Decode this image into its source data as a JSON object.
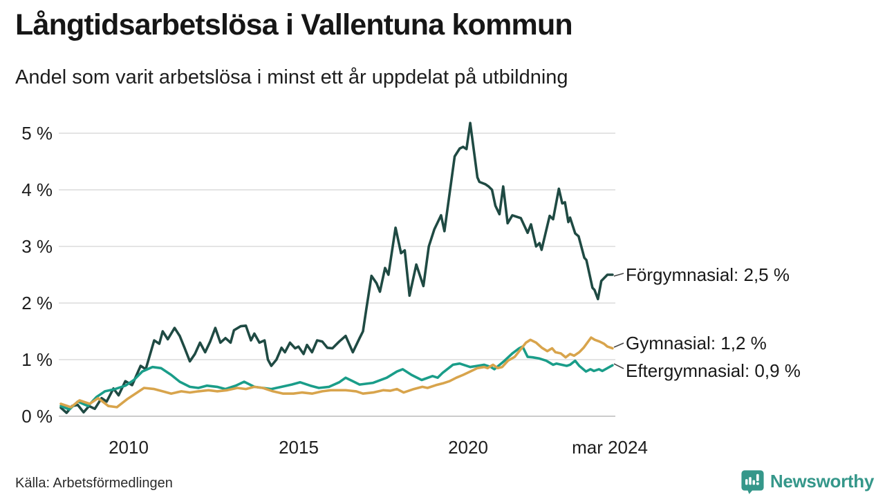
{
  "header": {
    "title": "Långtidsarbetslösa i Vallentuna kommun",
    "subtitle": "Andel som varit arbetslösa i minst ett år uppdelat på utbildning"
  },
  "footer": {
    "source": "Källa: Arbetsförmedlingen",
    "brand": "Newsworthy",
    "brand_color": "#35978a",
    "brand_icon": "newsworthy-bubble-barchart-icon"
  },
  "chart_data": {
    "type": "line",
    "title": "Långtidsarbetslösa i Vallentuna kommun",
    "subtitle": "Andel som varit arbetslösa i minst ett år uppdelat på utbildning",
    "grid": true,
    "legend_position": "right-end-labels",
    "x_axis": {
      "range": [
        2008.0,
        2024.3
      ],
      "ticks": [
        {
          "label": "2010",
          "year": 2010
        },
        {
          "label": "2015",
          "year": 2015
        },
        {
          "label": "2020",
          "year": 2020
        },
        {
          "label": "mar 2024",
          "year": 2024.17
        }
      ]
    },
    "y_axis": {
      "range": [
        0,
        5.3
      ],
      "unit": "%",
      "ticks": [
        {
          "label": "0 %",
          "value": 0
        },
        {
          "label": "1 %",
          "value": 1
        },
        {
          "label": "2 %",
          "value": 2
        },
        {
          "label": "3 %",
          "value": 3
        },
        {
          "label": "4 %",
          "value": 4
        },
        {
          "label": "5 %",
          "value": 5
        }
      ]
    },
    "gridline_color": "#e4e4e4",
    "axisline_color": "#cbcbcb",
    "series": [
      {
        "id": "forgymnasial",
        "name": "Förgymnasial",
        "label": "Förgymnasial: 2,5 %",
        "last_value": "2,5 %",
        "color": "#1f4a43",
        "points": [
          [
            2008.0,
            0.15
          ],
          [
            2008.17,
            0.06
          ],
          [
            2008.33,
            0.18
          ],
          [
            2008.5,
            0.2
          ],
          [
            2008.67,
            0.07
          ],
          [
            2008.83,
            0.18
          ],
          [
            2009.0,
            0.13
          ],
          [
            2009.2,
            0.32
          ],
          [
            2009.35,
            0.26
          ],
          [
            2009.55,
            0.49
          ],
          [
            2009.7,
            0.37
          ],
          [
            2009.9,
            0.62
          ],
          [
            2010.1,
            0.55
          ],
          [
            2010.35,
            0.89
          ],
          [
            2010.5,
            0.83
          ],
          [
            2010.75,
            1.34
          ],
          [
            2010.9,
            1.28
          ],
          [
            2011.0,
            1.5
          ],
          [
            2011.15,
            1.36
          ],
          [
            2011.35,
            1.56
          ],
          [
            2011.5,
            1.42
          ],
          [
            2011.65,
            1.2
          ],
          [
            2011.8,
            0.97
          ],
          [
            2011.95,
            1.1
          ],
          [
            2012.1,
            1.3
          ],
          [
            2012.25,
            1.13
          ],
          [
            2012.4,
            1.32
          ],
          [
            2012.55,
            1.56
          ],
          [
            2012.7,
            1.3
          ],
          [
            2012.85,
            1.38
          ],
          [
            2013.0,
            1.3
          ],
          [
            2013.1,
            1.52
          ],
          [
            2013.3,
            1.59
          ],
          [
            2013.45,
            1.6
          ],
          [
            2013.6,
            1.34
          ],
          [
            2013.7,
            1.46
          ],
          [
            2013.85,
            1.3
          ],
          [
            2014.0,
            1.34
          ],
          [
            2014.1,
            1.0
          ],
          [
            2014.2,
            0.89
          ],
          [
            2014.35,
            1.0
          ],
          [
            2014.5,
            1.21
          ],
          [
            2014.6,
            1.13
          ],
          [
            2014.75,
            1.3
          ],
          [
            2014.9,
            1.2
          ],
          [
            2015.0,
            1.23
          ],
          [
            2015.15,
            1.1
          ],
          [
            2015.25,
            1.26
          ],
          [
            2015.4,
            1.13
          ],
          [
            2015.55,
            1.34
          ],
          [
            2015.7,
            1.32
          ],
          [
            2015.85,
            1.21
          ],
          [
            2016.0,
            1.2
          ],
          [
            2016.2,
            1.32
          ],
          [
            2016.39,
            1.42
          ],
          [
            2016.6,
            1.13
          ],
          [
            2016.8,
            1.38
          ],
          [
            2016.9,
            1.5
          ],
          [
            2017.0,
            1.9
          ],
          [
            2017.15,
            2.48
          ],
          [
            2017.3,
            2.35
          ],
          [
            2017.4,
            2.2
          ],
          [
            2017.55,
            2.62
          ],
          [
            2017.65,
            2.5
          ],
          [
            2017.86,
            3.33
          ],
          [
            2018.02,
            2.88
          ],
          [
            2018.13,
            2.93
          ],
          [
            2018.27,
            2.13
          ],
          [
            2018.47,
            2.68
          ],
          [
            2018.68,
            2.3
          ],
          [
            2018.84,
            3.0
          ],
          [
            2019.0,
            3.3
          ],
          [
            2019.2,
            3.55
          ],
          [
            2019.3,
            3.27
          ],
          [
            2019.6,
            4.59
          ],
          [
            2019.75,
            4.73
          ],
          [
            2019.85,
            4.76
          ],
          [
            2019.95,
            4.72
          ],
          [
            2020.06,
            5.18
          ],
          [
            2020.27,
            4.22
          ],
          [
            2020.33,
            4.14
          ],
          [
            2020.5,
            4.1
          ],
          [
            2020.6,
            4.06
          ],
          [
            2020.7,
            4.0
          ],
          [
            2020.8,
            3.72
          ],
          [
            2020.92,
            3.57
          ],
          [
            2021.03,
            4.06
          ],
          [
            2021.16,
            3.41
          ],
          [
            2021.3,
            3.55
          ],
          [
            2021.55,
            3.5
          ],
          [
            2021.75,
            3.24
          ],
          [
            2021.85,
            3.39
          ],
          [
            2022.0,
            3.0
          ],
          [
            2022.1,
            3.06
          ],
          [
            2022.16,
            2.94
          ],
          [
            2022.4,
            3.54
          ],
          [
            2022.5,
            3.48
          ],
          [
            2022.67,
            4.02
          ],
          [
            2022.77,
            3.76
          ],
          [
            2022.85,
            3.78
          ],
          [
            2022.95,
            3.43
          ],
          [
            2023.0,
            3.51
          ],
          [
            2023.15,
            3.23
          ],
          [
            2023.25,
            3.18
          ],
          [
            2023.42,
            2.8
          ],
          [
            2023.48,
            2.76
          ],
          [
            2023.66,
            2.27
          ],
          [
            2023.72,
            2.23
          ],
          [
            2023.82,
            2.07
          ],
          [
            2023.92,
            2.39
          ],
          [
            2024.1,
            2.5
          ],
          [
            2024.25,
            2.5
          ]
        ]
      },
      {
        "id": "eftergymnasial",
        "name": "Eftergymnasial",
        "label": "Eftergymnasial: 0,9 %",
        "last_value": "0,9 %",
        "color": "#1a9d89",
        "points": [
          [
            2008.0,
            0.18
          ],
          [
            2008.25,
            0.12
          ],
          [
            2008.5,
            0.26
          ],
          [
            2008.8,
            0.18
          ],
          [
            2009.05,
            0.34
          ],
          [
            2009.3,
            0.44
          ],
          [
            2009.6,
            0.48
          ],
          [
            2009.9,
            0.54
          ],
          [
            2010.15,
            0.64
          ],
          [
            2010.4,
            0.79
          ],
          [
            2010.7,
            0.87
          ],
          [
            2010.95,
            0.85
          ],
          [
            2011.25,
            0.73
          ],
          [
            2011.5,
            0.61
          ],
          [
            2011.8,
            0.52
          ],
          [
            2012.05,
            0.5
          ],
          [
            2012.3,
            0.54
          ],
          [
            2012.6,
            0.52
          ],
          [
            2012.85,
            0.48
          ],
          [
            2013.15,
            0.54
          ],
          [
            2013.4,
            0.61
          ],
          [
            2013.7,
            0.52
          ],
          [
            2013.95,
            0.5
          ],
          [
            2014.2,
            0.48
          ],
          [
            2014.5,
            0.52
          ],
          [
            2014.8,
            0.56
          ],
          [
            2015.05,
            0.6
          ],
          [
            2015.35,
            0.54
          ],
          [
            2015.6,
            0.5
          ],
          [
            2015.9,
            0.52
          ],
          [
            2016.2,
            0.6
          ],
          [
            2016.39,
            0.68
          ],
          [
            2016.8,
            0.56
          ],
          [
            2017.2,
            0.59
          ],
          [
            2017.6,
            0.68
          ],
          [
            2017.9,
            0.79
          ],
          [
            2018.07,
            0.83
          ],
          [
            2018.33,
            0.73
          ],
          [
            2018.63,
            0.64
          ],
          [
            2018.95,
            0.71
          ],
          [
            2019.1,
            0.68
          ],
          [
            2019.25,
            0.77
          ],
          [
            2019.55,
            0.91
          ],
          [
            2019.75,
            0.93
          ],
          [
            2020.06,
            0.87
          ],
          [
            2020.27,
            0.89
          ],
          [
            2020.47,
            0.91
          ],
          [
            2020.67,
            0.87
          ],
          [
            2020.77,
            0.83
          ],
          [
            2020.97,
            0.93
          ],
          [
            2021.07,
            0.98
          ],
          [
            2021.3,
            1.11
          ],
          [
            2021.5,
            1.2
          ],
          [
            2021.6,
            1.23
          ],
          [
            2021.75,
            1.05
          ],
          [
            2021.9,
            1.04
          ],
          [
            2022.1,
            1.02
          ],
          [
            2022.3,
            0.98
          ],
          [
            2022.5,
            0.91
          ],
          [
            2022.6,
            0.93
          ],
          [
            2022.9,
            0.89
          ],
          [
            2023.0,
            0.91
          ],
          [
            2023.15,
            0.98
          ],
          [
            2023.27,
            0.89
          ],
          [
            2023.47,
            0.79
          ],
          [
            2023.6,
            0.83
          ],
          [
            2023.7,
            0.8
          ],
          [
            2023.85,
            0.83
          ],
          [
            2023.95,
            0.8
          ],
          [
            2024.1,
            0.85
          ],
          [
            2024.25,
            0.9
          ]
        ]
      },
      {
        "id": "gymnasial",
        "name": "Gymnasial",
        "label": "Gymnasial: 1,2 %",
        "last_value": "1,2 %",
        "color": "#d8a44c",
        "points": [
          [
            2008.0,
            0.22
          ],
          [
            2008.3,
            0.16
          ],
          [
            2008.55,
            0.28
          ],
          [
            2008.85,
            0.22
          ],
          [
            2009.1,
            0.32
          ],
          [
            2009.4,
            0.18
          ],
          [
            2009.65,
            0.16
          ],
          [
            2009.95,
            0.3
          ],
          [
            2010.2,
            0.4
          ],
          [
            2010.45,
            0.5
          ],
          [
            2010.75,
            0.48
          ],
          [
            2011.0,
            0.44
          ],
          [
            2011.25,
            0.4
          ],
          [
            2011.55,
            0.44
          ],
          [
            2011.8,
            0.42
          ],
          [
            2012.05,
            0.44
          ],
          [
            2012.35,
            0.46
          ],
          [
            2012.6,
            0.44
          ],
          [
            2012.9,
            0.46
          ],
          [
            2013.2,
            0.5
          ],
          [
            2013.45,
            0.48
          ],
          [
            2013.7,
            0.52
          ],
          [
            2013.95,
            0.5
          ],
          [
            2014.25,
            0.44
          ],
          [
            2014.55,
            0.4
          ],
          [
            2014.85,
            0.4
          ],
          [
            2015.1,
            0.42
          ],
          [
            2015.4,
            0.4
          ],
          [
            2015.7,
            0.44
          ],
          [
            2015.95,
            0.46
          ],
          [
            2016.39,
            0.46
          ],
          [
            2016.7,
            0.44
          ],
          [
            2016.9,
            0.4
          ],
          [
            2017.2,
            0.42
          ],
          [
            2017.5,
            0.46
          ],
          [
            2017.7,
            0.45
          ],
          [
            2017.9,
            0.48
          ],
          [
            2018.1,
            0.42
          ],
          [
            2018.4,
            0.48
          ],
          [
            2018.65,
            0.52
          ],
          [
            2018.8,
            0.5
          ],
          [
            2019.05,
            0.55
          ],
          [
            2019.25,
            0.58
          ],
          [
            2019.45,
            0.62
          ],
          [
            2019.65,
            0.68
          ],
          [
            2019.85,
            0.73
          ],
          [
            2020.06,
            0.79
          ],
          [
            2020.27,
            0.85
          ],
          [
            2020.47,
            0.87
          ],
          [
            2020.57,
            0.85
          ],
          [
            2020.73,
            0.91
          ],
          [
            2020.87,
            0.85
          ],
          [
            2021.0,
            0.87
          ],
          [
            2021.17,
            0.98
          ],
          [
            2021.37,
            1.05
          ],
          [
            2021.57,
            1.2
          ],
          [
            2021.7,
            1.3
          ],
          [
            2021.83,
            1.35
          ],
          [
            2022.0,
            1.3
          ],
          [
            2022.17,
            1.21
          ],
          [
            2022.33,
            1.15
          ],
          [
            2022.47,
            1.2
          ],
          [
            2022.57,
            1.13
          ],
          [
            2022.73,
            1.11
          ],
          [
            2022.87,
            1.04
          ],
          [
            2023.0,
            1.1
          ],
          [
            2023.12,
            1.07
          ],
          [
            2023.27,
            1.13
          ],
          [
            2023.4,
            1.21
          ],
          [
            2023.62,
            1.39
          ],
          [
            2023.73,
            1.35
          ],
          [
            2023.87,
            1.32
          ],
          [
            2024.0,
            1.28
          ],
          [
            2024.1,
            1.23
          ],
          [
            2024.25,
            1.2
          ]
        ]
      }
    ]
  }
}
